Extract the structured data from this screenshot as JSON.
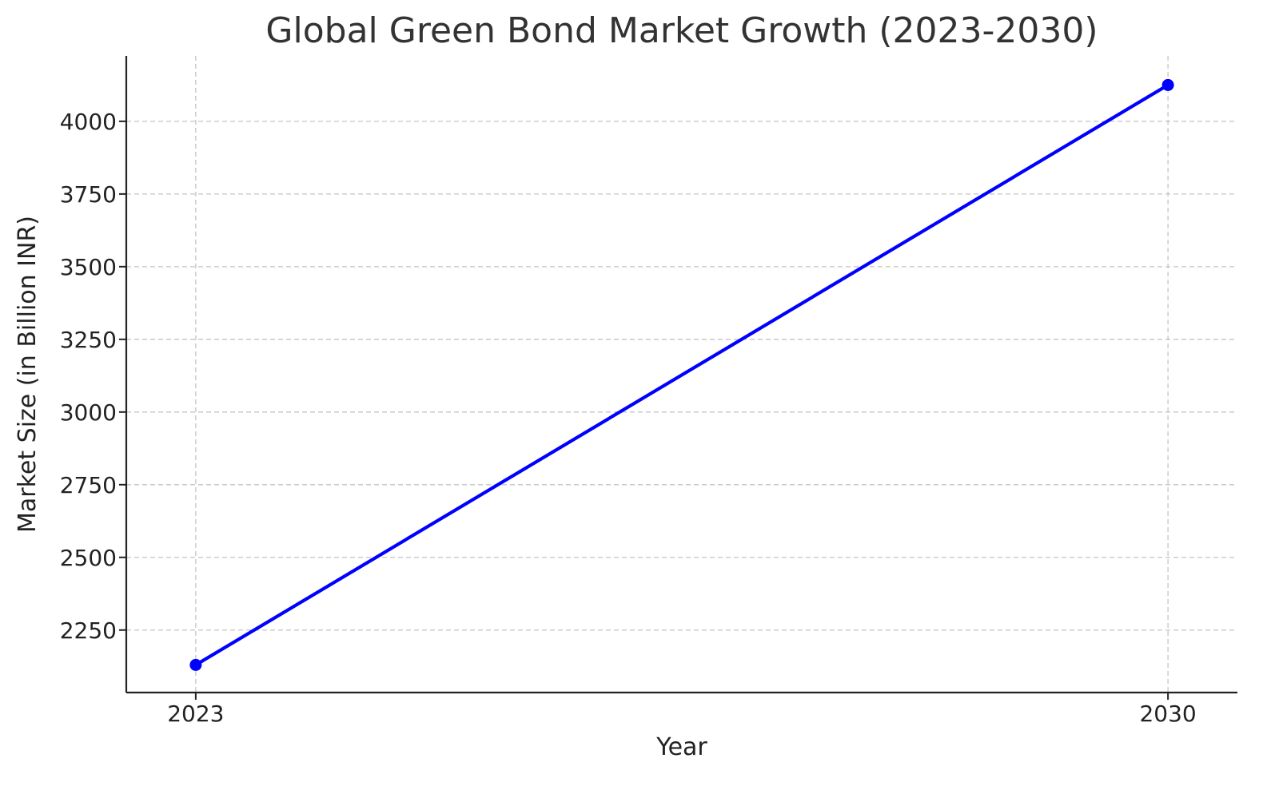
{
  "chart_data": {
    "type": "line",
    "title": "Global Green Bond Market Growth (2023-2030)",
    "xlabel": "Year",
    "ylabel": "Market Size (in Billion INR)",
    "x": [
      2023,
      2030
    ],
    "x_tick_labels": [
      "2023",
      "2030"
    ],
    "y_ticks": [
      2250,
      2500,
      2750,
      3000,
      3250,
      3500,
      3750,
      4000
    ],
    "y_tick_labels": [
      "2250",
      "2500",
      "2750",
      "3000",
      "3250",
      "3500",
      "3750",
      "4000"
    ],
    "series": [
      {
        "values": [
          2130,
          4125
        ],
        "color": "#0000ff",
        "marker": "circle"
      }
    ],
    "xlim": [
      2022.5,
      2030.5
    ],
    "ylim": [
      2035,
      4225
    ],
    "grid": true,
    "grid_style": "dashed",
    "spines": [
      "left",
      "bottom"
    ]
  }
}
